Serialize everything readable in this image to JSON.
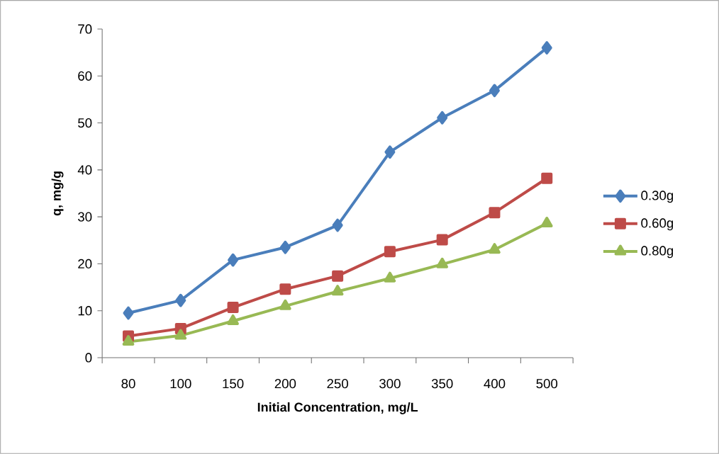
{
  "chart_data": {
    "type": "line",
    "xlabel": "Initial Concentration, mg/L",
    "ylabel": "q, mg/g",
    "categories": [
      "80",
      "100",
      "150",
      "200",
      "250",
      "300",
      "350",
      "400",
      "500"
    ],
    "series": [
      {
        "name": "0.30g",
        "color": "#4a7ebb",
        "marker": "diamond",
        "values": [
          9.5,
          12.2,
          20.8,
          23.5,
          28.2,
          43.8,
          51.1,
          56.9,
          66.0
        ]
      },
      {
        "name": "0.60g",
        "color": "#be4b48",
        "marker": "square",
        "values": [
          4.6,
          6.2,
          10.7,
          14.6,
          17.4,
          22.6,
          25.1,
          30.9,
          38.2
        ]
      },
      {
        "name": "0.80g",
        "color": "#98b954",
        "marker": "triangle",
        "values": [
          3.4,
          4.7,
          7.8,
          11.0,
          14.1,
          16.9,
          19.9,
          23.0,
          28.6
        ]
      }
    ],
    "ylim": [
      0,
      70
    ],
    "yticks": [
      0,
      10,
      20,
      30,
      40,
      50,
      60,
      70
    ],
    "legend": "right"
  }
}
